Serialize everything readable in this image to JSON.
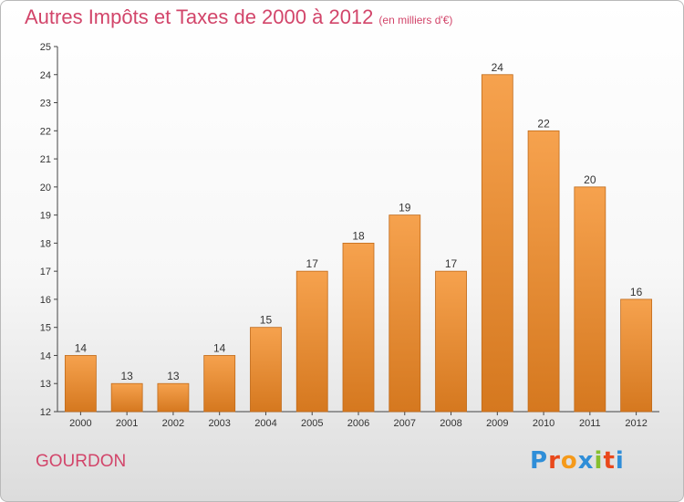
{
  "header": {
    "title": "Autres Impôts et Taxes de 2000 à 2012",
    "unit": "(en milliers d'€)"
  },
  "footer": {
    "city": "GOURDON",
    "logo": [
      "P",
      "r",
      "o",
      "x",
      "i",
      "t",
      "i"
    ]
  },
  "colors": {
    "title": "#d2456a",
    "bar_top": "#f6a24e",
    "bar_bottom": "#d5781f",
    "logo": [
      "#2f8ed8",
      "#e9481b",
      "#f59a1a",
      "#2f8ed8",
      "#86bf2e",
      "#e9481b",
      "#2f8ed8"
    ]
  },
  "chart_data": {
    "type": "bar",
    "categories": [
      "2000",
      "2001",
      "2002",
      "2003",
      "2004",
      "2005",
      "2006",
      "2007",
      "2008",
      "2009",
      "2010",
      "2011",
      "2012"
    ],
    "values": [
      14,
      13,
      13,
      14,
      15,
      17,
      18,
      19,
      17,
      24,
      22,
      20,
      16
    ],
    "value_labels": [
      "14",
      "13",
      "13",
      "14",
      "15",
      "17",
      "18",
      "19",
      "17",
      "24",
      "22",
      "20",
      "16"
    ],
    "y_ticks": [
      "12",
      "13",
      "14",
      "15",
      "16",
      "17",
      "18",
      "19",
      "20",
      "21",
      "22",
      "23",
      "24",
      "25"
    ],
    "ylim": [
      12,
      25
    ],
    "grid": false,
    "legend": "none"
  }
}
